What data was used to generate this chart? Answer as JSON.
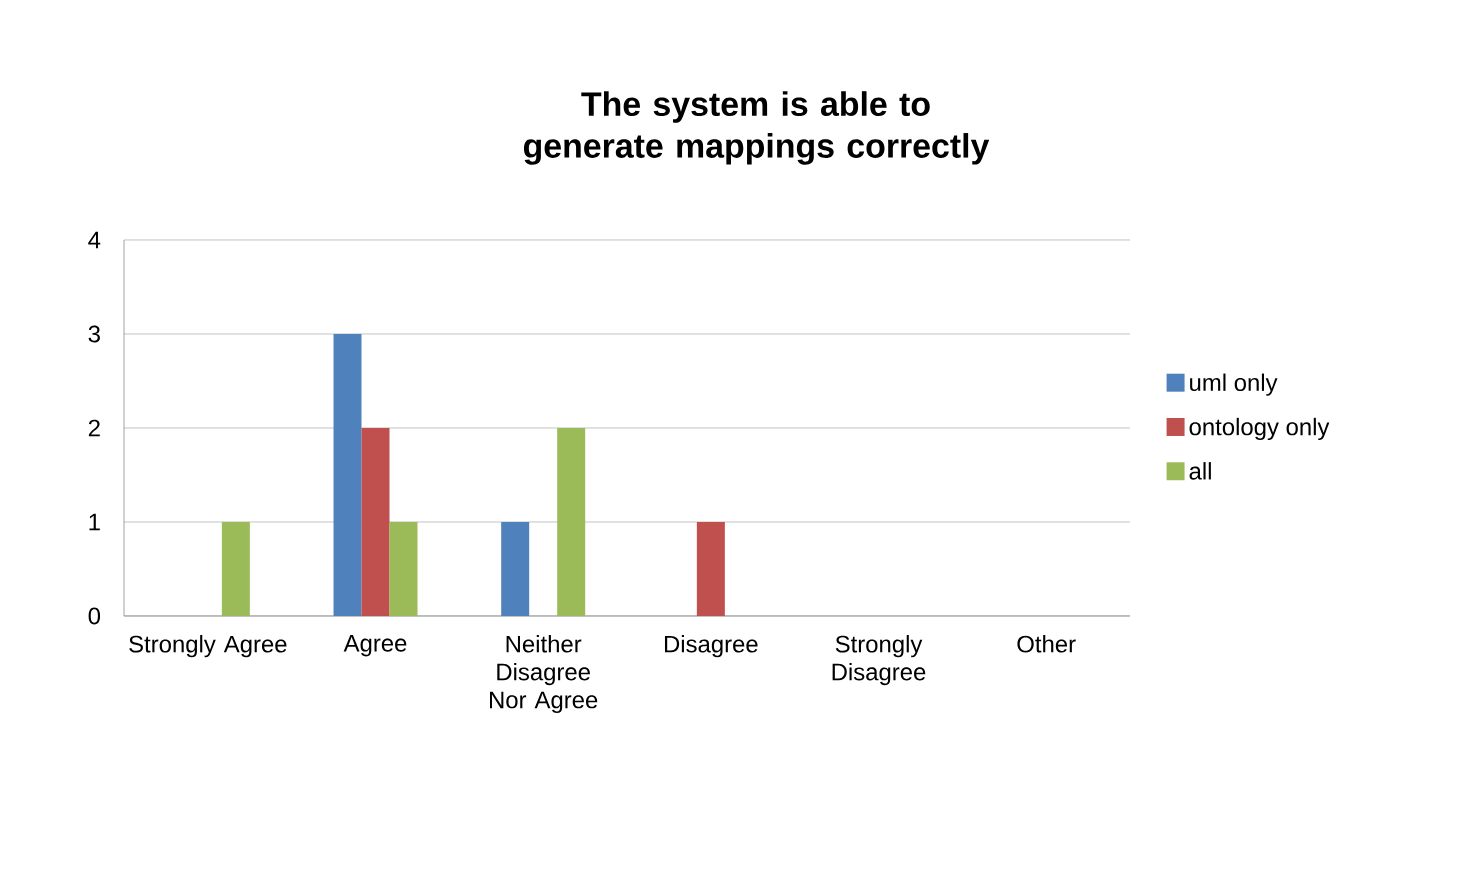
{
  "chart_data": {
    "type": "bar",
    "title": "The system is able to generate mappings correctly",
    "categories": [
      "Strongly Agree",
      "Agree",
      "Neither Disagree Nor Agree",
      "Disagree",
      "Strongly Disagree",
      "Other"
    ],
    "series": [
      {
        "name": "uml only",
        "color": "#4f81bd",
        "values": [
          0,
          3,
          1,
          0,
          0,
          0
        ]
      },
      {
        "name": "ontology only",
        "color": "#c0504d",
        "values": [
          0,
          2,
          0,
          1,
          0,
          0
        ]
      },
      {
        "name": "all",
        "color": "#9bbb59",
        "values": [
          1,
          1,
          2,
          0,
          0,
          0
        ]
      }
    ],
    "ylim": [
      0,
      4
    ],
    "yticks": [
      0,
      1,
      2,
      3,
      4
    ],
    "grid": "y",
    "legend": "right"
  }
}
